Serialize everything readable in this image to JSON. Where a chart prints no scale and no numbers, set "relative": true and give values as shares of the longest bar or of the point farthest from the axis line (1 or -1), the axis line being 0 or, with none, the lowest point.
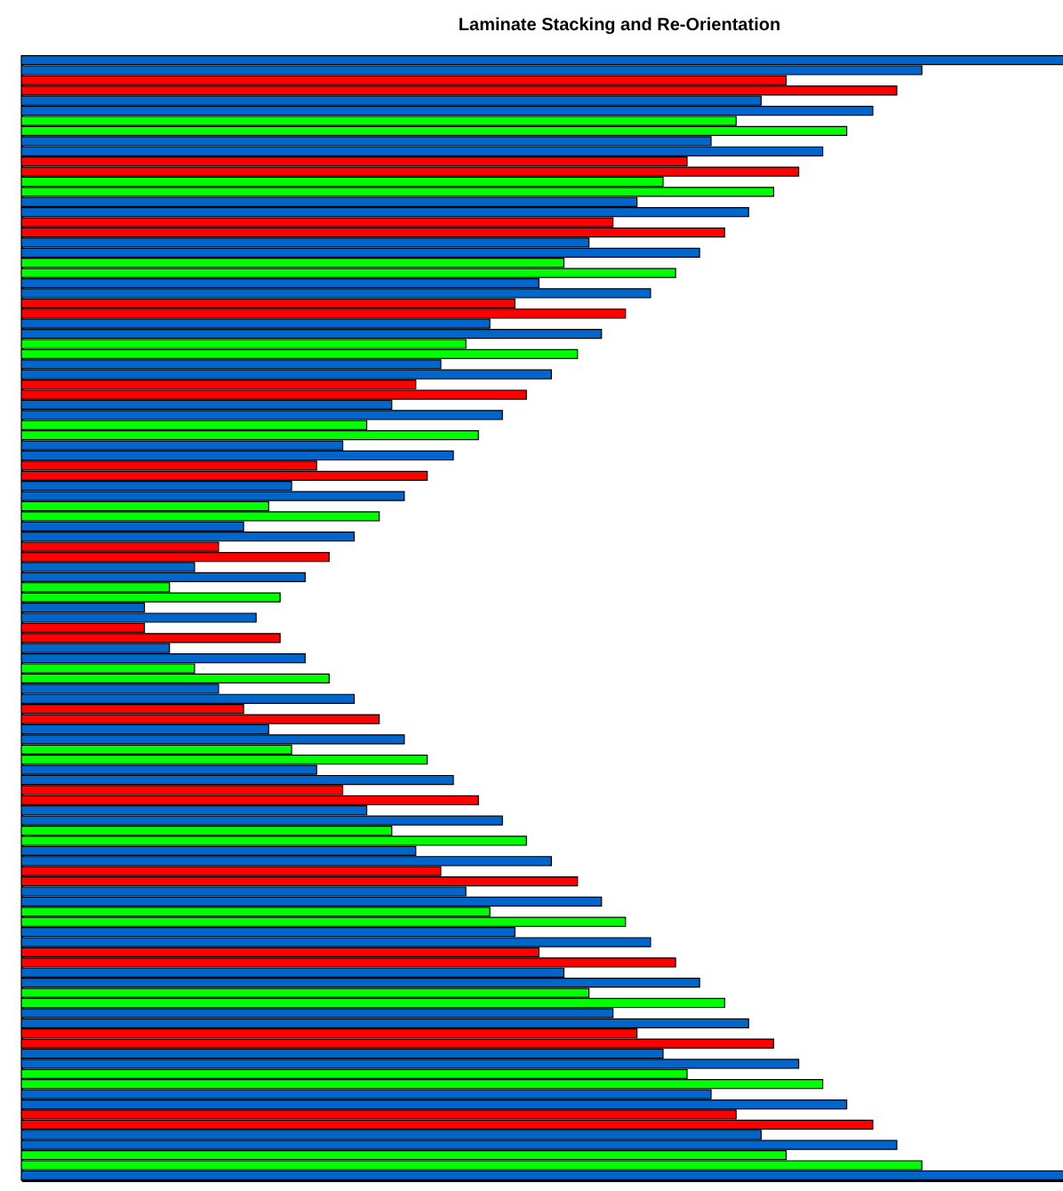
{
  "chart_data": {
    "type": "bar",
    "title": "Laminate Stacking and Re-Orientation",
    "orientation": "horizontal",
    "relative": true,
    "categories": [
      null,
      null,
      null,
      null,
      null,
      null,
      null,
      null,
      null,
      null,
      null,
      null,
      null,
      null,
      null,
      null,
      null,
      null,
      null,
      null,
      null,
      null,
      null,
      null,
      null,
      null,
      null,
      null,
      null,
      null,
      null,
      null,
      null,
      null,
      null,
      null,
      null,
      null,
      null,
      null,
      null,
      null,
      null,
      null,
      null,
      null,
      null,
      null,
      null,
      null,
      null,
      null,
      null,
      null,
      null,
      null,
      null,
      null,
      null,
      null,
      null,
      null,
      null,
      null,
      null,
      null,
      null,
      null,
      null,
      null,
      null,
      null,
      null,
      null,
      null,
      null,
      null,
      null,
      null,
      null,
      null,
      null,
      null,
      null,
      null,
      null,
      null,
      null,
      null,
      null,
      null,
      null,
      null,
      null,
      null,
      null,
      null,
      null,
      null,
      null,
      null,
      null,
      null,
      null,
      null,
      null,
      null,
      null,
      null,
      null,
      null
    ],
    "values": [
      1,
      0.863,
      0.733,
      0.839,
      0.709,
      0.816,
      0.685,
      0.791,
      0.661,
      0.768,
      0.638,
      0.745,
      0.615,
      0.721,
      0.59,
      0.697,
      0.567,
      0.674,
      0.544,
      0.65,
      0.52,
      0.627,
      0.496,
      0.603,
      0.473,
      0.579,
      0.449,
      0.556,
      0.426,
      0.533,
      0.402,
      0.508,
      0.378,
      0.484,
      0.355,
      0.461,
      0.331,
      0.438,
      0.308,
      0.414,
      0.283,
      0.389,
      0.259,
      0.367,
      0.237,
      0.343,
      0.213,
      0.319,
      0.189,
      0.295,
      0.166,
      0.272,
      0.142,
      0.248,
      0.118,
      0.225,
      0.118,
      0.248,
      0.142,
      0.272,
      0.166,
      0.295,
      0.189,
      0.319,
      0.213,
      0.343,
      0.237,
      0.367,
      0.259,
      0.389,
      0.283,
      0.414,
      0.308,
      0.438,
      0.331,
      0.461,
      0.355,
      0.484,
      0.378,
      0.508,
      0.402,
      0.533,
      0.426,
      0.556,
      0.449,
      0.579,
      0.473,
      0.603,
      0.496,
      0.627,
      0.52,
      0.65,
      0.544,
      0.674,
      0.567,
      0.697,
      0.59,
      0.721,
      0.615,
      0.745,
      0.638,
      0.768,
      0.661,
      0.791,
      0.685,
      0.816,
      0.709,
      0.839,
      0.733,
      0.863,
      1
    ],
    "colors": [
      "#0066cc",
      "#0066cc",
      "#ff0000",
      "#ff0000",
      "#0066cc",
      "#0066cc",
      "#00ff00",
      "#00ff00",
      "#0066cc",
      "#0066cc",
      "#ff0000",
      "#ff0000",
      "#00ff00",
      "#00ff00",
      "#0066cc",
      "#0066cc",
      "#ff0000",
      "#ff0000",
      "#0066cc",
      "#0066cc",
      "#00ff00",
      "#00ff00",
      "#0066cc",
      "#0066cc",
      "#ff0000",
      "#ff0000",
      "#0066cc",
      "#0066cc",
      "#00ff00",
      "#00ff00",
      "#0066cc",
      "#0066cc",
      "#ff0000",
      "#ff0000",
      "#0066cc",
      "#0066cc",
      "#00ff00",
      "#00ff00",
      "#0066cc",
      "#0066cc",
      "#ff0000",
      "#ff0000",
      "#0066cc",
      "#0066cc",
      "#00ff00",
      "#00ff00",
      "#0066cc",
      "#0066cc",
      "#ff0000",
      "#ff0000",
      "#0066cc",
      "#0066cc",
      "#00ff00",
      "#00ff00",
      "#0066cc",
      "#0066cc",
      "#ff0000",
      "#ff0000",
      "#0066cc",
      "#0066cc",
      "#00ff00",
      "#00ff00",
      "#0066cc",
      "#0066cc",
      "#ff0000",
      "#ff0000",
      "#0066cc",
      "#0066cc",
      "#00ff00",
      "#00ff00",
      "#0066cc",
      "#0066cc",
      "#ff0000",
      "#ff0000",
      "#0066cc",
      "#0066cc",
      "#00ff00",
      "#00ff00",
      "#0066cc",
      "#0066cc",
      "#ff0000",
      "#ff0000",
      "#0066cc",
      "#0066cc",
      "#00ff00",
      "#00ff00",
      "#0066cc",
      "#0066cc",
      "#ff0000",
      "#ff0000",
      "#0066cc",
      "#0066cc",
      "#00ff00",
      "#00ff00",
      "#0066cc",
      "#0066cc",
      "#ff0000",
      "#ff0000",
      "#0066cc",
      "#0066cc",
      "#00ff00",
      "#00ff00",
      "#0066cc",
      "#0066cc",
      "#ff0000",
      "#ff0000",
      "#0066cc",
      "#0066cc",
      "#00ff00",
      "#00ff00",
      "#0066cc"
    ],
    "tick_labels": false
  }
}
